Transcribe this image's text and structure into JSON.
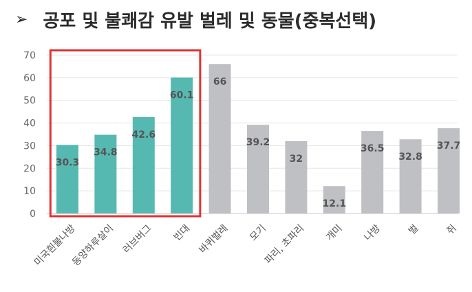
{
  "header": {
    "bullet": "➢",
    "title": "공포 및 불쾌감 유발 벌레 및 동물(중복선택)"
  },
  "chart_data": {
    "type": "bar",
    "title": "공포 및 불쾌감 유발 벌레 및 동물(중복선택)",
    "categories": [
      "미국흰불나방",
      "동양하루살이",
      "러브버그",
      "빈대",
      "바퀴벌레",
      "모기",
      "파리, 초파리",
      "개미",
      "나방",
      "벌",
      "쥐"
    ],
    "values": [
      30.3,
      34.8,
      42.6,
      60.1,
      66,
      39.2,
      32,
      12.1,
      36.5,
      32.8,
      37.7
    ],
    "value_labels": [
      "30.3",
      "34.8",
      "42.6",
      "60.1",
      "66",
      "39.2",
      "32",
      "12.1",
      "36.5",
      "32.8",
      "37.7"
    ],
    "yticks": [
      "0",
      "10",
      "20",
      "30",
      "40",
      "50",
      "60",
      "70"
    ],
    "ylim": [
      0,
      70
    ],
    "grid": true,
    "highlight_categories": [
      "미국흰불나방",
      "동양하루살이",
      "러브버그",
      "빈대"
    ],
    "colors": {
      "highlight": "#55b9b1",
      "default": "#bfc0c4",
      "highlight_box": "#e03131",
      "grid": "#e4e4e4",
      "axis": "#c8c8c8"
    }
  }
}
